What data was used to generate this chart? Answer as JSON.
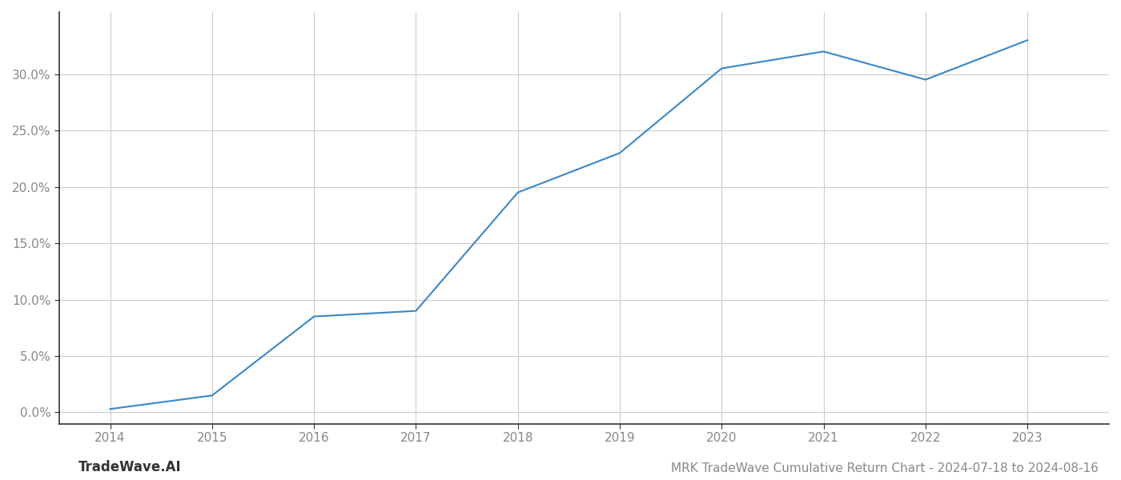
{
  "x_years": [
    2014,
    2015,
    2016,
    2017,
    2018,
    2019,
    2020,
    2021,
    2022,
    2023
  ],
  "y_values": [
    0.003,
    0.015,
    0.085,
    0.09,
    0.195,
    0.23,
    0.305,
    0.32,
    0.295,
    0.33
  ],
  "line_color": "#3a87c8",
  "line_width": 1.5,
  "title": "MRK TradeWave Cumulative Return Chart - 2024-07-18 to 2024-08-16",
  "watermark": "TradeWave.AI",
  "background_color": "#ffffff",
  "grid_color": "#cccccc",
  "yticks": [
    0.0,
    0.05,
    0.1,
    0.15,
    0.2,
    0.25,
    0.3
  ],
  "ytick_labels": [
    "0.0%",
    "5.0%",
    "10.0%",
    "15.0%",
    "20.0%",
    "25.0%",
    "30.0%"
  ],
  "xtick_labels": [
    "2014",
    "2015",
    "2016",
    "2017",
    "2018",
    "2019",
    "2020",
    "2021",
    "2022",
    "2023"
  ],
  "ylim": [
    -0.01,
    0.355
  ],
  "xlim": [
    2013.5,
    2023.8
  ],
  "title_fontsize": 11,
  "watermark_fontsize": 12,
  "tick_fontsize": 11,
  "title_color": "#888888",
  "watermark_color": "#333333",
  "tick_color": "#888888",
  "spine_color": "#333333"
}
